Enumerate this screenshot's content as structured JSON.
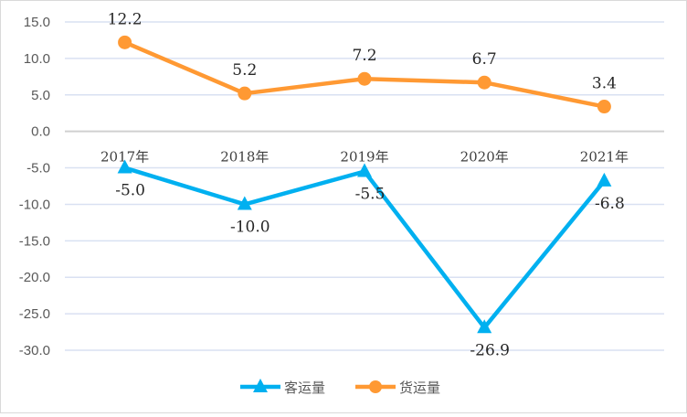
{
  "chart_data": {
    "type": "line",
    "title": "",
    "xlabel": "",
    "ylabel": "",
    "categories": [
      "2017年",
      "2018年",
      "2019年",
      "2020年",
      "2021年"
    ],
    "ylim": [
      -30,
      15
    ],
    "yticks": [
      "15.0",
      "10.0",
      "5.0",
      "0.0",
      "-5.0",
      "-10.0",
      "-15.0",
      "-20.0",
      "-25.0",
      "-30.0"
    ],
    "grid": true,
    "legend_position": "bottom",
    "series": [
      {
        "name": "客运量",
        "values": [
          -5.0,
          -10.0,
          -5.5,
          -26.9,
          -6.8
        ],
        "labels": [
          "-5.0",
          "-10.0",
          "-5.5",
          "-26.9",
          "-6.8"
        ],
        "color": "#00B0F0",
        "marker": "triangle"
      },
      {
        "name": "货运量",
        "values": [
          12.2,
          5.2,
          7.2,
          6.7,
          3.4
        ],
        "labels": [
          "12.2",
          "5.2",
          "7.2",
          "6.7",
          "3.4"
        ],
        "color": "#FF9933",
        "marker": "circle"
      }
    ]
  }
}
